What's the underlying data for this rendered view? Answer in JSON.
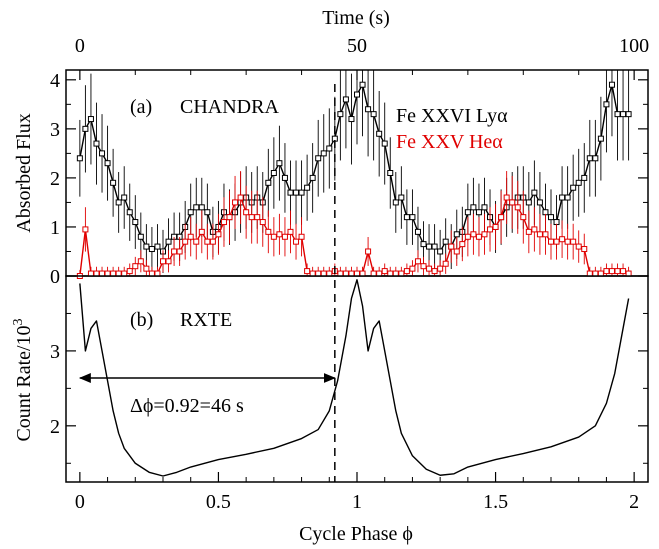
{
  "chart_data": [
    {
      "panel_label": "(a)",
      "title": "CHANDRA",
      "type": "line",
      "ylabel": "Absorbed Flux",
      "ylim": [
        0,
        4.2
      ],
      "yticks": [
        0,
        1,
        2,
        3,
        4
      ],
      "top_axis": {
        "label": "Time (s)",
        "ticks": [
          0,
          50,
          100
        ],
        "phase_per_second": 0.02
      },
      "legend_position": "top-right",
      "series": [
        {
          "name": "Fe XXVI Lyα",
          "color": "#000000",
          "marker": "square",
          "x": [
            0.0,
            0.02,
            0.04,
            0.06,
            0.08,
            0.1,
            0.12,
            0.14,
            0.16,
            0.18,
            0.2,
            0.22,
            0.24,
            0.26,
            0.28,
            0.3,
            0.32,
            0.34,
            0.36,
            0.38,
            0.4,
            0.42,
            0.44,
            0.46,
            0.48,
            0.5,
            0.52,
            0.54,
            0.56,
            0.58,
            0.6,
            0.62,
            0.64,
            0.66,
            0.68,
            0.7,
            0.72,
            0.74,
            0.76,
            0.78,
            0.8,
            0.82,
            0.84,
            0.86,
            0.88,
            0.9,
            0.92,
            0.94,
            0.96,
            0.98,
            1.0,
            1.02,
            1.04,
            1.06,
            1.08,
            1.1,
            1.12,
            1.14,
            1.16,
            1.18,
            1.2,
            1.22,
            1.24,
            1.26,
            1.28,
            1.3,
            1.32,
            1.34,
            1.36,
            1.38,
            1.4,
            1.42,
            1.44,
            1.46,
            1.48,
            1.5,
            1.52,
            1.54,
            1.56,
            1.58,
            1.6,
            1.62,
            1.64,
            1.66,
            1.68,
            1.7,
            1.72,
            1.74,
            1.76,
            1.78,
            1.8,
            1.82,
            1.84,
            1.86,
            1.88,
            1.9,
            1.92,
            1.94,
            1.96,
            1.98
          ],
          "y": [
            2.4,
            3.0,
            3.2,
            2.7,
            2.5,
            2.3,
            1.9,
            1.5,
            1.6,
            1.3,
            1.1,
            0.8,
            0.6,
            0.55,
            0.6,
            0.5,
            0.7,
            0.8,
            0.8,
            1.0,
            1.3,
            1.4,
            1.4,
            1.3,
            0.9,
            1.0,
            1.3,
            1.2,
            1.3,
            1.5,
            1.6,
            1.5,
            1.6,
            1.5,
            1.9,
            2.1,
            2.3,
            2.0,
            1.7,
            1.7,
            1.7,
            1.8,
            2.0,
            2.4,
            2.5,
            2.6,
            2.8,
            3.3,
            3.6,
            3.2,
            3.7,
            3.9,
            3.4,
            3.3,
            2.9,
            2.7,
            2.1,
            1.5,
            1.6,
            1.2,
            1.2,
            0.9,
            0.65,
            0.6,
            0.6,
            0.5,
            0.7,
            0.6,
            0.85,
            0.9,
            1.3,
            1.4,
            1.3,
            1.4,
            1.2,
            1.0,
            1.2,
            1.4,
            1.5,
            1.6,
            1.6,
            1.5,
            1.7,
            1.5,
            1.3,
            1.2,
            1.1,
            1.6,
            1.6,
            1.8,
            1.9,
            2.0,
            2.4,
            2.4,
            2.8,
            3.5,
            3.9,
            3.3,
            3.3,
            3.3
          ]
        },
        {
          "name": "Fe XXV Heα",
          "color": "#e00000",
          "marker": "square",
          "x": [
            0.0,
            0.02,
            0.04,
            0.06,
            0.08,
            0.1,
            0.12,
            0.14,
            0.16,
            0.18,
            0.2,
            0.22,
            0.24,
            0.26,
            0.28,
            0.3,
            0.32,
            0.34,
            0.36,
            0.38,
            0.4,
            0.42,
            0.44,
            0.46,
            0.48,
            0.5,
            0.52,
            0.54,
            0.56,
            0.58,
            0.6,
            0.62,
            0.64,
            0.66,
            0.68,
            0.7,
            0.72,
            0.74,
            0.76,
            0.78,
            0.8,
            0.82,
            0.84,
            0.86,
            0.88,
            0.9,
            0.92,
            0.94,
            0.96,
            0.98,
            1.0,
            1.02,
            1.04,
            1.06,
            1.08,
            1.1,
            1.12,
            1.14,
            1.16,
            1.18,
            1.2,
            1.22,
            1.24,
            1.26,
            1.28,
            1.3,
            1.32,
            1.34,
            1.36,
            1.38,
            1.4,
            1.42,
            1.44,
            1.46,
            1.48,
            1.5,
            1.52,
            1.54,
            1.56,
            1.58,
            1.6,
            1.62,
            1.64,
            1.66,
            1.68,
            1.7,
            1.72,
            1.74,
            1.76,
            1.78,
            1.8,
            1.82,
            1.84,
            1.86,
            1.88,
            1.9,
            1.92,
            1.94,
            1.96,
            1.98
          ],
          "y": [
            0.0,
            0.95,
            0.05,
            0.05,
            0.05,
            0.05,
            0.05,
            0.05,
            0.05,
            0.1,
            0.2,
            0.3,
            0.15,
            0.05,
            0.05,
            0.3,
            0.3,
            0.5,
            0.5,
            0.7,
            0.8,
            0.7,
            0.9,
            0.7,
            0.7,
            0.85,
            1.1,
            1.2,
            1.5,
            1.6,
            1.3,
            1.2,
            1.2,
            1.1,
            0.9,
            0.8,
            0.85,
            0.8,
            0.9,
            0.7,
            0.8,
            0.1,
            0.05,
            0.05,
            0.05,
            0.05,
            0.1,
            0.05,
            0.05,
            0.05,
            0.05,
            0.05,
            0.5,
            0.05,
            0.05,
            0.1,
            0.05,
            0.05,
            0.05,
            0.1,
            0.15,
            0.3,
            0.2,
            0.15,
            0.1,
            0.15,
            0.25,
            0.6,
            0.5,
            0.65,
            0.8,
            0.85,
            0.8,
            0.85,
            0.95,
            1.0,
            1.2,
            1.6,
            1.5,
            1.4,
            1.2,
            0.9,
            0.95,
            0.85,
            0.85,
            0.7,
            0.7,
            0.75,
            0.7,
            0.7,
            0.6,
            0.55,
            0.05,
            0.05,
            0.05,
            0.1,
            0.1,
            0.1,
            0.1,
            0.05
          ]
        }
      ]
    },
    {
      "panel_label": "(b)",
      "title": "RXTE",
      "type": "line",
      "xlabel": "Cycle Phase ϕ",
      "ylabel": "Count Rate/10",
      "ylabel_exp": "3",
      "xlim": [
        -0.05,
        2.05
      ],
      "xticks": [
        0,
        0.5,
        1,
        1.5,
        2
      ],
      "xtick_labels": [
        "0",
        "0.5",
        "1",
        "1.5",
        "2"
      ],
      "ylim": [
        1.25,
        4.0
      ],
      "yticks": [
        2,
        3
      ],
      "series": [
        {
          "color": "#000000",
          "x": [
            0.0,
            0.02,
            0.04,
            0.06,
            0.08,
            0.1,
            0.12,
            0.14,
            0.16,
            0.2,
            0.25,
            0.3,
            0.35,
            0.4,
            0.5,
            0.6,
            0.7,
            0.8,
            0.86,
            0.9,
            0.93,
            0.96,
            0.98,
            1.0,
            1.02,
            1.04,
            1.06,
            1.08,
            1.1,
            1.12,
            1.14,
            1.16,
            1.2,
            1.25,
            1.3,
            1.35,
            1.4,
            1.5,
            1.6,
            1.7,
            1.8,
            1.86,
            1.9,
            1.93,
            1.96,
            1.98
          ],
          "y": [
            3.9,
            3.0,
            3.3,
            3.4,
            3.0,
            2.6,
            2.2,
            1.9,
            1.7,
            1.5,
            1.38,
            1.33,
            1.38,
            1.45,
            1.55,
            1.62,
            1.7,
            1.83,
            1.95,
            2.2,
            2.6,
            3.2,
            3.7,
            3.95,
            3.6,
            3.0,
            3.3,
            3.4,
            3.0,
            2.6,
            2.2,
            1.9,
            1.6,
            1.42,
            1.34,
            1.36,
            1.45,
            1.55,
            1.63,
            1.72,
            1.85,
            2.0,
            2.3,
            2.7,
            3.3,
            3.7
          ]
        }
      ],
      "annotation": {
        "text": "Δϕ=0.92=46 s",
        "from_phase": 0,
        "to_phase": 0.92
      }
    }
  ],
  "marker_line": {
    "phase": 0.92,
    "style": "dashed"
  }
}
